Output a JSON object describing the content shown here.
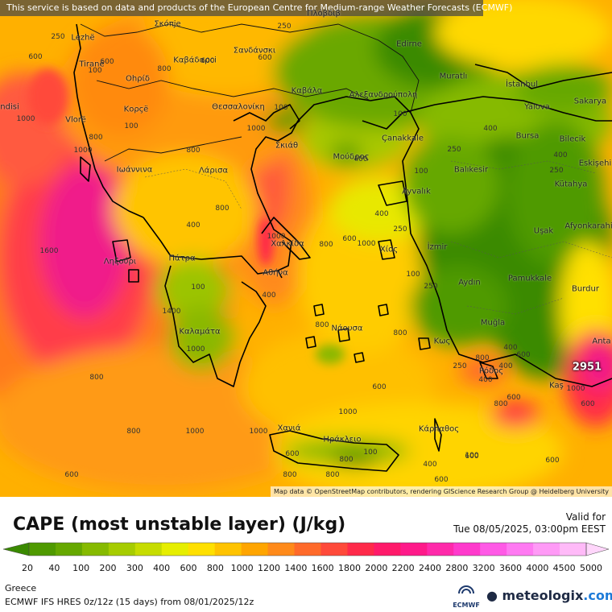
{
  "header": {
    "disclaimer": "This service is based on data and products of the European Centre for Medium-range Weather Forecasts (ECMWF)"
  },
  "map": {
    "attribution": "Map data © OpenStreetMap contributors, rendering GIScience Research Group @ Heidelberg University",
    "max_value_label": "2951",
    "places": [
      {
        "name": "Lezhë"
      },
      {
        "name": "Σκόπje"
      },
      {
        "name": "Πλόβδιβ"
      },
      {
        "name": "Tiranë"
      },
      {
        "name": "Καβάδαρci"
      },
      {
        "name": "Σανδάνσκι"
      },
      {
        "name": "Edirne"
      },
      {
        "name": "Muratlı"
      },
      {
        "name": "Ohρίδ"
      },
      {
        "name": "İstanbul"
      },
      {
        "name": "Sakarya"
      },
      {
        "name": "Καβάλα"
      },
      {
        "name": "Αλεξανδρούπολη"
      },
      {
        "name": "Κορçë"
      },
      {
        "name": "Θεσσαλονίκη"
      },
      {
        "name": "Yalova"
      },
      {
        "name": "Vlorë"
      },
      {
        "name": "Çanakkale"
      },
      {
        "name": "Bursa"
      },
      {
        "name": "Bilecik"
      },
      {
        "name": "Σκιάθ"
      },
      {
        "name": "Μούδρος"
      },
      {
        "name": "Eskişehi"
      },
      {
        "name": "Ιωάννινα"
      },
      {
        "name": "Λάρισα"
      },
      {
        "name": "Balıkesir"
      },
      {
        "name": "Kütahya"
      },
      {
        "name": "Ayvalık"
      },
      {
        "name": "Afyonkarahi"
      },
      {
        "name": "Uşak"
      },
      {
        "name": "Χαλκίδα"
      },
      {
        "name": "Xίος"
      },
      {
        "name": "İzmir"
      },
      {
        "name": "Ληξούρι"
      },
      {
        "name": "Πάτρα"
      },
      {
        "name": "Αθήνα"
      },
      {
        "name": "Pamukkale"
      },
      {
        "name": "Aydın"
      },
      {
        "name": "Burdur"
      },
      {
        "name": "Καλαμάτα"
      },
      {
        "name": "Νάουσα"
      },
      {
        "name": "Muğla"
      },
      {
        "name": "Κως"
      },
      {
        "name": "Anta"
      },
      {
        "name": "Ρόδος"
      },
      {
        "name": "Kaş"
      },
      {
        "name": "Κάρπαθος"
      },
      {
        "name": "Χανιά"
      },
      {
        "name": "Ηράκλειο"
      },
      {
        "name": "ndisi"
      }
    ],
    "contour_labels": [
      "250",
      "600",
      "250",
      "100",
      "600",
      "1000",
      "800",
      "100",
      "1000",
      "800",
      "600",
      "400",
      "600",
      "800",
      "1000",
      "100",
      "400",
      "250",
      "400",
      "250",
      "100",
      "1600",
      "400",
      "800",
      "1000",
      "800",
      "600",
      "1000",
      "400",
      "100",
      "1400",
      "100",
      "250",
      "400",
      "1000",
      "800",
      "800",
      "800",
      "1000",
      "1000",
      "600",
      "800",
      "800",
      "400",
      "600",
      "800",
      "600",
      "100",
      "1000",
      "400",
      "600",
      "400",
      "250",
      "800",
      "600",
      "100",
      "250",
      "100",
      "600",
      "600",
      "600",
      "800",
      "1000",
      "600",
      "800",
      "400"
    ]
  },
  "legend": {
    "title": "CAPE (most unstable layer) (J/kg)",
    "valid_label": "Valid for",
    "valid_time": "Tue 08/05/2025, 03:00pm EEST",
    "ticks": [
      "20",
      "40",
      "100",
      "200",
      "300",
      "400",
      "600",
      "800",
      "1000",
      "1200",
      "1400",
      "1600",
      "1800",
      "2000",
      "2200",
      "2400",
      "2800",
      "3200",
      "3600",
      "4000",
      "4500",
      "5000"
    ],
    "colors": [
      "#3a8a00",
      "#4f9a00",
      "#66a800",
      "#86ba00",
      "#a6cc00",
      "#c6dc00",
      "#e6ee00",
      "#ffe000",
      "#ffc300",
      "#ffa500",
      "#ff8a1a",
      "#ff6a2a",
      "#ff4a3a",
      "#ff2a4a",
      "#ff1a6a",
      "#ff1a8a",
      "#ff2aaa",
      "#ff3acc",
      "#ff5ae6",
      "#ff7af2",
      "#ff9af6",
      "#ffbaf8",
      "#ffd6fb"
    ],
    "region": "Greece",
    "model_info": "ECMWF IFS HRES 0z/12z (15 days) from 08/01/2025/12z",
    "ecmwf_logo_text": "ECMWF",
    "brand_name": "meteologix",
    "brand_suffix": ".com"
  }
}
